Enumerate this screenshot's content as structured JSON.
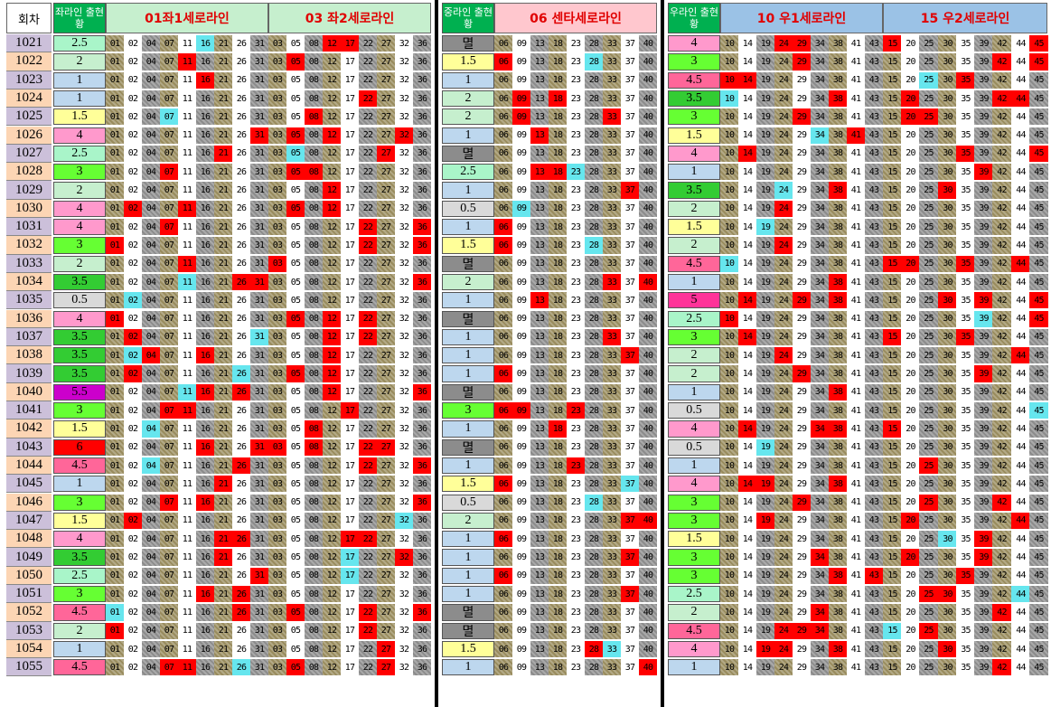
{
  "header": {
    "round_label": "회차",
    "groups": [
      {
        "title": "좌라인\n출현황",
        "line1_pre": "01좌1세로",
        "line1_post": "라인",
        "line2_pre": "03 좌2세로",
        "line2_post": "라인"
      },
      {
        "title": "중라인\n출현황",
        "line1_pre": "06 센타세로",
        "line1_post": "라인"
      },
      {
        "title": "우라인\n출현황",
        "line1_pre": "10 우1세로",
        "line1_post": "라인",
        "line2_pre": "15 우2세로",
        "line2_post": "라인"
      }
    ]
  },
  "columns": {
    "left1": [
      "01",
      "02",
      "04",
      "07",
      "11",
      "16",
      "21",
      "26",
      "31"
    ],
    "left2": [
      "03",
      "05",
      "08",
      "12",
      "17",
      "22",
      "27",
      "32",
      "36"
    ],
    "center": [
      "06",
      "09",
      "13",
      "18",
      "23",
      "28",
      "33",
      "37",
      "40"
    ],
    "right1": [
      "10",
      "14",
      "19",
      "24",
      "29",
      "34",
      "38",
      "41",
      "43"
    ],
    "right2": [
      "15",
      "20",
      "25",
      "30",
      "35",
      "39",
      "42",
      "44",
      "45"
    ]
  },
  "colors": {
    "red": "#ff0000",
    "cyan": "#66e6ee",
    "olive": "#998c5e",
    "gray": "#8c8c8c",
    "light": "#fff",
    "green_head": "#c6efce",
    "blue_head": "#9bc2e6",
    "pink_head": "#ffc7ce"
  },
  "rows": [
    {
      "no": "1021",
      "L": "2.5",
      "C": "멸",
      "R": "4",
      "hl": {
        "left1": [
          "16c"
        ],
        "left2": [
          "12",
          "17"
        ],
        "right1": [
          "24",
          "29"
        ],
        "right2": [
          "15",
          "45"
        ]
      }
    },
    {
      "no": "1022",
      "L": "2",
      "C": "1.5",
      "R": "3",
      "hl": {
        "left1": [
          "11"
        ],
        "left2": [
          "05"
        ],
        "center": [
          "06",
          "28c"
        ],
        "right1": [
          "29"
        ],
        "right2": [
          "42",
          "45"
        ]
      }
    },
    {
      "no": "1023",
      "L": "1",
      "C": "1",
      "R": "4.5",
      "hl": {
        "left1": [
          "16"
        ],
        "right1": [
          "10",
          "14"
        ],
        "right2": [
          "25c",
          "35"
        ]
      }
    },
    {
      "no": "1024",
      "L": "1",
      "C": "2",
      "R": "3.5",
      "hl": {
        "left2": [
          "22"
        ],
        "center": [
          "09",
          "18"
        ],
        "right1": [
          "10c",
          "38"
        ],
        "right2": [
          "20",
          "42",
          "44"
        ]
      }
    },
    {
      "no": "1025",
      "L": "1.5",
      "C": "2",
      "R": "3",
      "hl": {
        "left1": [
          "07c"
        ],
        "left2": [
          "08"
        ],
        "center": [
          "09",
          "33"
        ],
        "right1": [
          "29"
        ],
        "right2": [
          "20",
          "25"
        ]
      }
    },
    {
      "no": "1026",
      "L": "4",
      "C": "1",
      "R": "1.5",
      "hl": {
        "left1": [
          "31"
        ],
        "left2": [
          "05",
          "12",
          "32"
        ],
        "center": [
          "13"
        ],
        "right1": [
          "34c",
          "41"
        ],
        "right2": []
      }
    },
    {
      "no": "1027",
      "L": "2.5",
      "C": "멸",
      "R": "4",
      "hl": {
        "left1": [
          "21"
        ],
        "left2": [
          "05c",
          "27"
        ],
        "right1": [
          "14"
        ],
        "right2": [
          "35",
          "45"
        ]
      }
    },
    {
      "no": "1028",
      "L": "3",
      "C": "2.5",
      "R": "1",
      "hl": {
        "left1": [
          "07"
        ],
        "left2": [
          "05",
          "08"
        ],
        "center": [
          "13",
          "18",
          "23c"
        ],
        "right1": [],
        "right2": [
          "39"
        ]
      }
    },
    {
      "no": "1029",
      "L": "2",
      "C": "1",
      "R": "3.5",
      "hl": {
        "left2": [
          "12"
        ],
        "center": [
          "37"
        ],
        "right1": [
          "24c",
          "38"
        ],
        "right2": [
          "30"
        ]
      }
    },
    {
      "no": "1030",
      "L": "4",
      "C": "0.5",
      "R": "2",
      "hl": {
        "left1": [
          "02",
          "11"
        ],
        "left2": [
          "05",
          "12"
        ],
        "center": [
          "09c"
        ],
        "right1": [
          "24"
        ],
        "right2": []
      }
    },
    {
      "no": "1031",
      "L": "4",
      "C": "1",
      "R": "1.5",
      "hl": {
        "left1": [
          "07"
        ],
        "left2": [
          "22",
          "36"
        ],
        "center": [
          "06"
        ],
        "right1": [
          "19c"
        ],
        "right2": []
      }
    },
    {
      "no": "1032",
      "L": "3",
      "C": "1.5",
      "R": "2",
      "hl": {
        "left1": [
          "01"
        ],
        "left2": [
          "22",
          "36"
        ],
        "center": [
          "06",
          "28c"
        ],
        "right1": [
          "24"
        ],
        "right2": []
      }
    },
    {
      "no": "1033",
      "L": "2",
      "C": "멸",
      "R": "4.5",
      "hl": {
        "left1": [
          "11"
        ],
        "left2": [
          "03"
        ],
        "right1": [
          "10c"
        ],
        "right2": [
          "15",
          "20",
          "35",
          "44"
        ]
      }
    },
    {
      "no": "1034",
      "L": "3.5",
      "C": "2",
      "R": "1",
      "hl": {
        "left1": [
          "11c",
          "26",
          "31"
        ],
        "left2": [
          "36"
        ],
        "center": [
          "33",
          "40"
        ],
        "right1": [
          "38"
        ],
        "right2": []
      }
    },
    {
      "no": "1035",
      "L": "0.5",
      "C": "1",
      "R": "5",
      "hl": {
        "left1": [
          "02c"
        ],
        "center": [
          "13"
        ],
        "right1": [
          "14",
          "29",
          "38"
        ],
        "right2": [
          "30",
          "39",
          "45"
        ]
      }
    },
    {
      "no": "1036",
      "L": "4",
      "C": "멸",
      "R": "2.5",
      "hl": {
        "left1": [
          "01"
        ],
        "left2": [
          "05",
          "12",
          "22"
        ],
        "right1": [
          "10"
        ],
        "right2": [
          "39c",
          "45"
        ]
      }
    },
    {
      "no": "1037",
      "L": "3.5",
      "C": "1",
      "R": "3",
      "hl": {
        "left1": [
          "02",
          "31c"
        ],
        "left2": [
          "12",
          "22"
        ],
        "center": [
          "33"
        ],
        "right1": [
          "14"
        ],
        "right2": [
          "15",
          "35"
        ]
      }
    },
    {
      "no": "1038",
      "L": "3.5",
      "C": "1",
      "R": "2",
      "hl": {
        "left1": [
          "02c",
          "04",
          "16"
        ],
        "left2": [
          "12"
        ],
        "center": [
          "37"
        ],
        "right1": [
          "24"
        ],
        "right2": [
          "44"
        ]
      }
    },
    {
      "no": "1039",
      "L": "3.5",
      "C": "1",
      "R": "2",
      "hl": {
        "left1": [
          "02",
          "26c"
        ],
        "left2": [
          "05",
          "12"
        ],
        "center": [
          "06"
        ],
        "right1": [
          "29"
        ],
        "right2": [
          "39"
        ]
      }
    },
    {
      "no": "1040",
      "L": "5.5",
      "C": "멸",
      "R": "1",
      "hl": {
        "left1": [
          "11c",
          "16",
          "26"
        ],
        "left2": [
          "12",
          "36"
        ],
        "right1": [
          "38"
        ],
        "right2": []
      }
    },
    {
      "no": "1041",
      "L": "3",
      "C": "3",
      "R": "0.5",
      "hl": {
        "left1": [
          "07",
          "11"
        ],
        "left2": [
          "17"
        ],
        "center": [
          "06",
          "09",
          "23"
        ],
        "right1": [],
        "right2": [
          "45c"
        ]
      }
    },
    {
      "no": "1042",
      "L": "1.5",
      "C": "1",
      "R": "4",
      "hl": {
        "left1": [
          "04c"
        ],
        "left2": [
          "08"
        ],
        "center": [
          "18"
        ],
        "right1": [
          "14",
          "34",
          "38"
        ],
        "right2": [
          "15"
        ]
      }
    },
    {
      "no": "1043",
      "L": "6",
      "C": "멸",
      "R": "0.5",
      "no_color": "#3399ff",
      "hl": {
        "left1": [
          "16",
          "31"
        ],
        "left2": [
          "03",
          "08",
          "22",
          "27"
        ],
        "right1": [
          "19c"
        ],
        "right2": []
      }
    },
    {
      "no": "1044",
      "L": "4.5",
      "C": "1",
      "R": "1",
      "hl": {
        "left1": [
          "04c",
          "26"
        ],
        "left2": [
          "22",
          "36"
        ],
        "center": [
          "23"
        ],
        "right1": [],
        "right2": [
          "25"
        ]
      }
    },
    {
      "no": "1045",
      "L": "1",
      "C": "1.5",
      "R": "4",
      "hl": {
        "left1": [
          "21"
        ],
        "center": [
          "06",
          "37c"
        ],
        "right1": [
          "14",
          "19",
          "38"
        ],
        "right2": []
      }
    },
    {
      "no": "1046",
      "L": "3",
      "C": "0.5",
      "R": "3",
      "hl": {
        "left1": [
          "07",
          "16"
        ],
        "left2": [
          "36"
        ],
        "center": [
          "28c"
        ],
        "right1": [
          "29"
        ],
        "right2": [
          "25",
          "42"
        ]
      }
    },
    {
      "no": "1047",
      "L": "1.5",
      "C": "2",
      "R": "3",
      "hl": {
        "left1": [
          "02"
        ],
        "left2": [
          "32c"
        ],
        "center": [
          "37",
          "40"
        ],
        "right1": [
          "19"
        ],
        "right2": [
          "20",
          "44"
        ]
      }
    },
    {
      "no": "1048",
      "L": "4",
      "C": "1",
      "R": "1.5",
      "hl": {
        "left1": [
          "21",
          "26"
        ],
        "left2": [
          "17",
          "22"
        ],
        "center": [
          "06"
        ],
        "right1": [],
        "right2": [
          "30c",
          "39"
        ]
      }
    },
    {
      "no": "1049",
      "L": "3.5",
      "C": "1",
      "R": "3",
      "hl": {
        "left1": [
          "21"
        ],
        "left2": [
          "17c",
          "32"
        ],
        "center": [
          "37"
        ],
        "right1": [
          "34"
        ],
        "right2": [
          "20",
          "39"
        ]
      }
    },
    {
      "no": "1050",
      "L": "2.5",
      "C": "1",
      "R": "3",
      "hl": {
        "left1": [
          "31"
        ],
        "left2": [
          "17c"
        ],
        "center": [
          "06"
        ],
        "right1": [
          "38",
          "43"
        ],
        "right2": [
          "35"
        ]
      }
    },
    {
      "no": "1051",
      "L": "3",
      "C": "1",
      "R": "2.5",
      "hl": {
        "left1": [
          "16",
          "26"
        ],
        "center": [
          "37"
        ],
        "right1": [],
        "right2": [
          "25",
          "30",
          "44c"
        ]
      }
    },
    {
      "no": "1052",
      "L": "4.5",
      "C": "멸",
      "R": "2",
      "hl": {
        "left1": [
          "01c",
          "26"
        ],
        "left2": [
          "05",
          "22",
          "36"
        ],
        "right1": [
          "34"
        ],
        "right2": [
          "42"
        ]
      }
    },
    {
      "no": "1053",
      "L": "2",
      "C": "멸",
      "R": "4.5",
      "hl": {
        "left1": [
          "01"
        ],
        "left2": [
          "22"
        ],
        "right1": [
          "24",
          "29",
          "34"
        ],
        "right2": [
          "15c",
          "25"
        ]
      }
    },
    {
      "no": "1054",
      "L": "1",
      "C": "1.5",
      "R": "4",
      "hl": {
        "left2": [
          "27"
        ],
        "center": [
          "28",
          "33c"
        ],
        "right1": [
          "19",
          "24",
          "38"
        ],
        "right2": [
          "30"
        ]
      }
    },
    {
      "no": "1055",
      "L": "4.5",
      "C": "1",
      "R": "1",
      "hl": {
        "left1": [
          "07",
          "11",
          "26c"
        ],
        "left2": [
          "05",
          "27"
        ],
        "center": [
          "40"
        ],
        "right1": [],
        "right2": [
          "42"
        ]
      }
    }
  ]
}
